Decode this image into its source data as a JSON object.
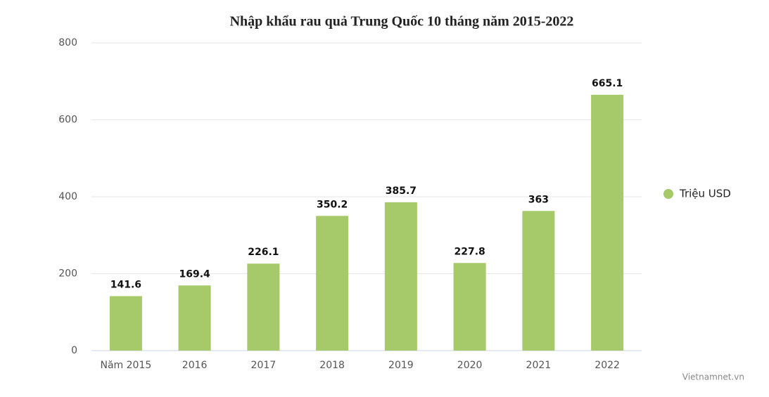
{
  "chart_data": {
    "type": "bar",
    "title": "Nhập khẩu rau quả Trung Quốc 10 tháng năm 2015-2022",
    "categories": [
      "Năm 2015",
      "2016",
      "2017",
      "2018",
      "2019",
      "2020",
      "2021",
      "2022"
    ],
    "series": [
      {
        "name": "Triệu USD",
        "color": "#a6c96a",
        "values": [
          141.6,
          169.4,
          226.1,
          350.2,
          385.7,
          227.8,
          363,
          665.1
        ]
      }
    ],
    "ylim": [
      0,
      800
    ],
    "yticks": [
      0,
      200,
      400,
      600,
      800
    ],
    "grid": true,
    "legend": "right",
    "credit": "Vietnamnet.vn"
  }
}
